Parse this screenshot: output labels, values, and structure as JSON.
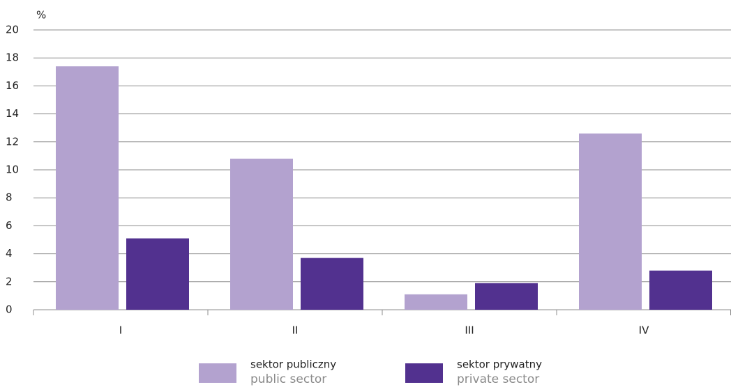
{
  "chart_data": {
    "type": "bar",
    "y_label": "%",
    "categories": [
      "I",
      "II",
      "III",
      "IV"
    ],
    "series": [
      {
        "name": "sektor publiczny",
        "name_en": "public sector",
        "color": "#b3a2cf",
        "values": [
          17.4,
          10.8,
          1.1,
          12.6
        ]
      },
      {
        "name": "sektor prywatny",
        "name_en": "private sector",
        "color": "#52318f",
        "values": [
          5.1,
          3.7,
          1.9,
          2.8
        ]
      }
    ],
    "ylim": [
      0,
      20
    ],
    "yticks": [
      0,
      2,
      4,
      6,
      8,
      10,
      12,
      14,
      16,
      18,
      20
    ],
    "grid": true
  }
}
